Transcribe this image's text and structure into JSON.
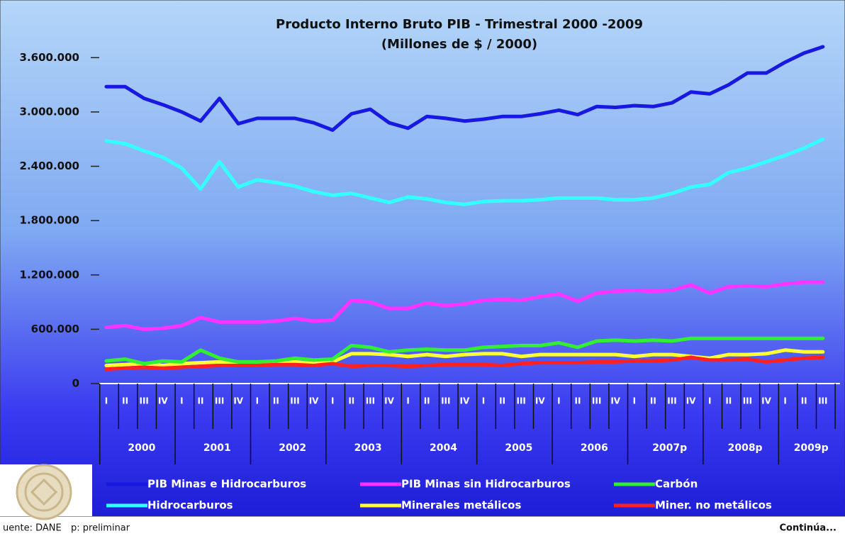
{
  "chart_data": {
    "type": "line",
    "title": "Producto Interno Bruto PIB - Trimestral 2000 -2009",
    "subtitle": "(Millones de $ / 2000)",
    "categories": [
      "I",
      "II",
      "III",
      "IV",
      "I",
      "II",
      "III",
      "IV",
      "I",
      "II",
      "III",
      "IV",
      "I",
      "II",
      "III",
      "IV",
      "I",
      "II",
      "III",
      "IV",
      "I",
      "II",
      "III",
      "IV",
      "I",
      "II",
      "III",
      "IV",
      "I",
      "II",
      "III",
      "IV",
      "I",
      "II",
      "III",
      "IV",
      "I",
      "II",
      "III"
    ],
    "year_labels": [
      "2000",
      "2001",
      "2002",
      "2003",
      "2004",
      "2005",
      "2006",
      "2007p",
      "2008p",
      "2009p"
    ],
    "ylim": [
      0,
      4080000
    ],
    "yticks": [
      0,
      {
        "value": 600000,
        "label": "600.000"
      },
      {
        "value": 1200000,
        "label": "1.200.000"
      },
      {
        "value": 1800000,
        "label": "1.800.000"
      },
      {
        "value": 2400000,
        "label": "2.400.000"
      },
      {
        "value": 3000000,
        "label": "3.000.000"
      },
      {
        "value": 3600000,
        "label": "3.600.000"
      }
    ],
    "grid": false,
    "series": [
      {
        "name": "PIB Minas e Hidrocarburos",
        "color": "#1818e0",
        "values": [
          3280000,
          3280000,
          3150000,
          3080000,
          3000000,
          2900000,
          3150000,
          2870000,
          2930000,
          2930000,
          2930000,
          2880000,
          2800000,
          2980000,
          3030000,
          2880000,
          2820000,
          2950000,
          2930000,
          2900000,
          2920000,
          2950000,
          2950000,
          2980000,
          3020000,
          2970000,
          3060000,
          3050000,
          3070000,
          3060000,
          3100000,
          3220000,
          3200000,
          3300000,
          3430000,
          3430000,
          3550000,
          3650000,
          3720000
        ]
      },
      {
        "name": "Hidrocarburos",
        "color": "#33ffff",
        "values": [
          2680000,
          2650000,
          2570000,
          2500000,
          2380000,
          2150000,
          2450000,
          2170000,
          2250000,
          2220000,
          2180000,
          2120000,
          2080000,
          2100000,
          2050000,
          2000000,
          2060000,
          2040000,
          2000000,
          1980000,
          2010000,
          2020000,
          2020000,
          2030000,
          2050000,
          2050000,
          2050000,
          2030000,
          2030000,
          2050000,
          2100000,
          2170000,
          2200000,
          2330000,
          2380000,
          2450000,
          2520000,
          2600000,
          2700000
        ]
      },
      {
        "name": "PIB Minas sin Hidrocarburos",
        "color": "#ff33ff",
        "values": [
          620000,
          640000,
          600000,
          610000,
          640000,
          730000,
          680000,
          680000,
          680000,
          690000,
          720000,
          690000,
          700000,
          920000,
          900000,
          830000,
          830000,
          890000,
          860000,
          880000,
          920000,
          930000,
          920000,
          960000,
          990000,
          910000,
          1000000,
          1020000,
          1030000,
          1020000,
          1030000,
          1090000,
          1000000,
          1070000,
          1080000,
          1070000,
          1100000,
          1120000,
          1120000
        ]
      },
      {
        "name": "Minerales metálicos",
        "color": "#ffff33",
        "values": [
          200000,
          210000,
          220000,
          200000,
          220000,
          230000,
          240000,
          220000,
          220000,
          230000,
          240000,
          220000,
          240000,
          330000,
          330000,
          320000,
          300000,
          320000,
          300000,
          320000,
          330000,
          330000,
          300000,
          320000,
          320000,
          320000,
          320000,
          320000,
          300000,
          320000,
          320000,
          300000,
          280000,
          320000,
          320000,
          330000,
          370000,
          350000,
          350000
        ]
      },
      {
        "name": "Carbón",
        "color": "#33ee33",
        "values": [
          250000,
          270000,
          220000,
          250000,
          240000,
          370000,
          280000,
          240000,
          240000,
          250000,
          280000,
          260000,
          270000,
          420000,
          400000,
          350000,
          370000,
          380000,
          370000,
          370000,
          400000,
          410000,
          420000,
          420000,
          450000,
          400000,
          470000,
          480000,
          470000,
          480000,
          470000,
          500000,
          500000,
          500000,
          500000,
          500000,
          500000,
          500000,
          500000
        ]
      },
      {
        "name": "Miner. no metálicos",
        "color": "#ff2020",
        "values": [
          160000,
          170000,
          180000,
          170000,
          180000,
          190000,
          200000,
          200000,
          200000,
          210000,
          210000,
          200000,
          220000,
          190000,
          200000,
          200000,
          190000,
          200000,
          210000,
          210000,
          210000,
          200000,
          220000,
          230000,
          230000,
          230000,
          240000,
          240000,
          250000,
          250000,
          260000,
          290000,
          260000,
          260000,
          270000,
          240000,
          260000,
          280000,
          290000
        ]
      }
    ],
    "legend_order": [
      0,
      2,
      4,
      1,
      3,
      5
    ],
    "source": "uente: DANE",
    "note": "p: preliminar",
    "continues": "Continúa..."
  }
}
